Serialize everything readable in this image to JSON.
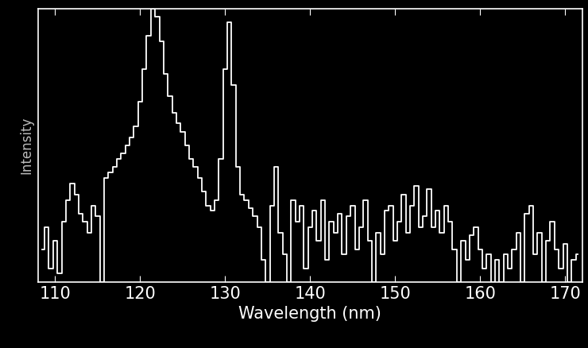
{
  "chart_data": {
    "type": "line",
    "x_label": "Wavelength (nm)",
    "y_label": "Intensity",
    "x": [
      108.5,
      109,
      109.5,
      110,
      110.5,
      111,
      111.5,
      112,
      112.5,
      113,
      113.5,
      114,
      114.5,
      115,
      115.5,
      116,
      116.5,
      117,
      117.5,
      118,
      118.5,
      119,
      119.5,
      120,
      120.5,
      121,
      121.5,
      122,
      122.5,
      123,
      123.5,
      124,
      124.5,
      125,
      125.5,
      126,
      126.5,
      127,
      127.5,
      128,
      128.5,
      129,
      129.5,
      130,
      130.5,
      131,
      131.5,
      132,
      132.5,
      133,
      133.5,
      134,
      134.5,
      135,
      135.5,
      136,
      136.5,
      137,
      137.5,
      138,
      138.5,
      139,
      139.5,
      140,
      140.5,
      141,
      141.5,
      142,
      142.5,
      143,
      143.5,
      144,
      144.5,
      145,
      145.5,
      146,
      146.5,
      147,
      147.5,
      148,
      148.5,
      149,
      149.5,
      150,
      150.5,
      151,
      151.5,
      152,
      152.5,
      153,
      153.5,
      154,
      154.5,
      155,
      155.5,
      156,
      156.5,
      157,
      157.5,
      158,
      158.5,
      159,
      159.5,
      160,
      160.5,
      161,
      161.5,
      162,
      162.5,
      163,
      163.5,
      164,
      164.5,
      165,
      165.5,
      166,
      166.5,
      167,
      167.5,
      168,
      168.5,
      169,
      169.5,
      170,
      170.5,
      171,
      171.5
    ],
    "values": [
      12,
      20,
      5,
      15,
      3,
      22,
      30,
      36,
      32,
      25,
      22,
      18,
      28,
      24,
      0,
      38,
      40,
      42,
      45,
      47,
      50,
      53,
      57,
      66,
      78,
      90,
      100,
      97,
      88,
      76,
      68,
      62,
      58,
      55,
      50,
      45,
      42,
      38,
      33,
      28,
      26,
      30,
      45,
      78,
      95,
      72,
      42,
      32,
      30,
      27,
      24,
      20,
      8,
      0,
      28,
      42,
      18,
      10,
      0,
      30,
      22,
      28,
      5,
      20,
      26,
      15,
      30,
      8,
      22,
      18,
      25,
      10,
      24,
      28,
      12,
      20,
      30,
      15,
      0,
      18,
      10,
      26,
      28,
      15,
      22,
      32,
      18,
      28,
      35,
      20,
      24,
      34,
      20,
      26,
      18,
      28,
      22,
      12,
      0,
      15,
      8,
      17,
      20,
      12,
      5,
      10,
      0,
      8,
      0,
      10,
      5,
      12,
      18,
      0,
      25,
      28,
      10,
      18,
      0,
      15,
      22,
      12,
      5,
      14,
      0,
      8,
      10
    ],
    "color": "#ffffff",
    "line_style": "steps",
    "xlim": [
      108,
      172
    ],
    "xticks": [
      110,
      120,
      130,
      140,
      150,
      160,
      170
    ],
    "ylim": [
      0,
      100
    ],
    "yticks": [],
    "tick_labels": "x",
    "grid": false
  }
}
